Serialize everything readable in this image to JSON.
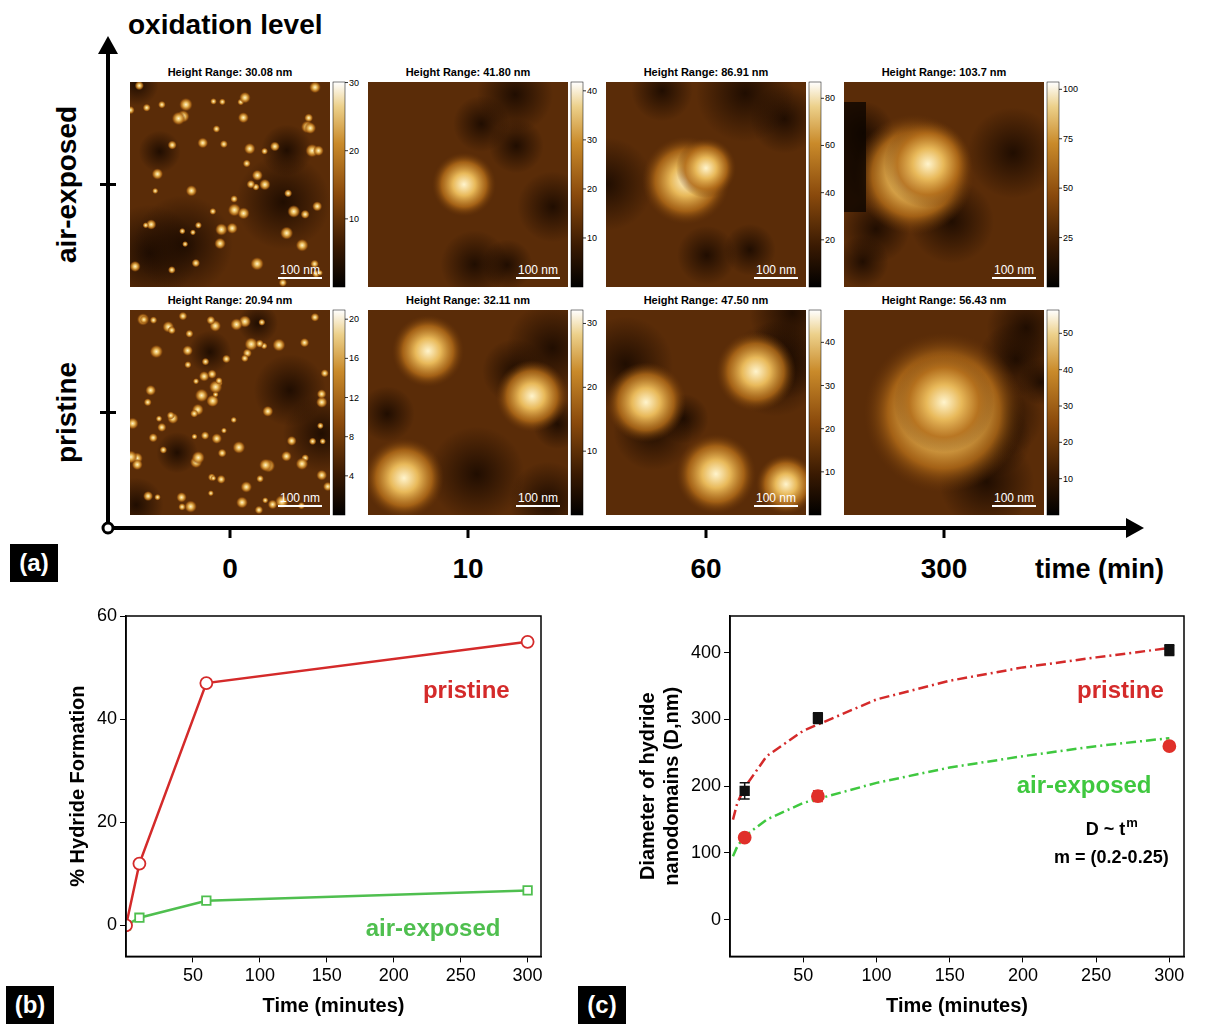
{
  "panel_a": {
    "label": "(a)",
    "y_axis_title": "oxidation level",
    "x_axis_title": "time (min)",
    "rows": [
      "air-exposed",
      "pristine"
    ],
    "columns": [
      0,
      10,
      60,
      300
    ],
    "images": [
      [
        {
          "title": "Height Range: 30.08 nm",
          "colorbar_range": [
            0,
            30.08
          ],
          "colorbar_ticks": [
            10,
            20,
            30
          ],
          "scale_bar": "100 nm"
        },
        {
          "title": "Height Range: 41.80 nm",
          "colorbar_range": [
            0,
            41.8
          ],
          "colorbar_ticks": [
            10,
            20,
            30,
            40
          ],
          "scale_bar": "100 nm"
        },
        {
          "title": "Height Range: 86.91 nm",
          "colorbar_range": [
            0,
            86.91
          ],
          "colorbar_ticks": [
            20,
            40,
            60,
            80
          ],
          "scale_bar": "100 nm"
        },
        {
          "title": "Height Range: 103.7 nm",
          "colorbar_range": [
            0,
            103.7
          ],
          "colorbar_ticks": [
            25,
            50,
            75,
            100
          ],
          "scale_bar": "100 nm"
        }
      ],
      [
        {
          "title": "Height Range: 20.94 nm",
          "colorbar_range": [
            0,
            20.94
          ],
          "colorbar_ticks": [
            4,
            8,
            12,
            16,
            20
          ],
          "scale_bar": "100 nm"
        },
        {
          "title": "Height Range: 32.11 nm",
          "colorbar_range": [
            0,
            32.11
          ],
          "colorbar_ticks": [
            10,
            20,
            30
          ],
          "scale_bar": "100 nm"
        },
        {
          "title": "Height Range: 47.50 nm",
          "colorbar_range": [
            0,
            47.5
          ],
          "colorbar_ticks": [
            10,
            20,
            30,
            40
          ],
          "scale_bar": "100 nm"
        },
        {
          "title": "Height Range: 56.43 nm",
          "colorbar_range": [
            0,
            56.43
          ],
          "colorbar_ticks": [
            10,
            20,
            30,
            40,
            50
          ],
          "scale_bar": "100 nm"
        }
      ]
    ]
  },
  "chart_data": [
    {
      "label": "(b)",
      "type": "line",
      "x_label": "Time (minutes)",
      "y_label": "% Hydride Formation",
      "xlim": [
        0,
        310
      ],
      "xticks": [
        50,
        100,
        150,
        200,
        250,
        300
      ],
      "ylim": [
        -6,
        60
      ],
      "yticks": [
        0,
        20,
        40,
        60
      ],
      "grid": false,
      "series": [
        {
          "name": "pristine",
          "color": "#d42a2a",
          "marker": "circle-open",
          "line_style": "solid",
          "x": [
            0,
            10,
            60,
            300
          ],
          "values": [
            0,
            12,
            47,
            55
          ]
        },
        {
          "name": "air-exposed",
          "color": "#4fbf4f",
          "marker": "square-open",
          "line_style": "solid",
          "x": [
            0,
            10,
            60,
            300
          ],
          "values": [
            0,
            1.5,
            4.8,
            6.8
          ]
        }
      ]
    },
    {
      "label": "(c)",
      "type": "scatter",
      "x_label": "Time (minutes)",
      "y_label": [
        "Diameter of hydride",
        "nanodomains (D,nm)"
      ],
      "xlim": [
        0,
        310
      ],
      "xticks": [
        50,
        100,
        150,
        200,
        250,
        300
      ],
      "ylim": [
        -55,
        455
      ],
      "yticks": [
        0,
        100,
        200,
        300,
        400
      ],
      "grid": false,
      "annotations": [
        {
          "text": "D ~ t",
          "superscript": "m"
        },
        {
          "text": "m = (0.2-0.25)"
        }
      ],
      "series": [
        {
          "name": "pristine",
          "type": "scatter",
          "color": "#111111",
          "marker": "square",
          "line_style": "none",
          "x": [
            10,
            60,
            300
          ],
          "values": [
            193,
            302,
            404
          ],
          "errors": [
            12,
            8,
            8
          ]
        },
        {
          "name": "air-exposed",
          "type": "scatter",
          "color": "#e0302a",
          "marker": "circle",
          "line_style": "none",
          "x": [
            10,
            60,
            300
          ],
          "values": [
            123,
            185,
            260
          ],
          "errors": [
            5,
            8,
            5
          ]
        },
        {
          "name": "pristine",
          "type": "line",
          "color": "#d42a2a",
          "marker": "none",
          "line_style": "dashdot",
          "x": [
            2,
            5,
            10,
            25,
            50,
            100,
            150,
            200,
            250,
            300
          ],
          "values": [
            150,
            175,
            198,
            245,
            283,
            330,
            358,
            378,
            393,
            407
          ]
        },
        {
          "name": "air-exposed",
          "type": "line",
          "color": "#3fc83f",
          "marker": "none",
          "line_style": "dashdot",
          "x": [
            2,
            5,
            10,
            25,
            50,
            100,
            150,
            200,
            250,
            300
          ],
          "values": [
            95,
            110,
            125,
            150,
            175,
            205,
            228,
            245,
            260,
            272
          ]
        }
      ]
    }
  ]
}
